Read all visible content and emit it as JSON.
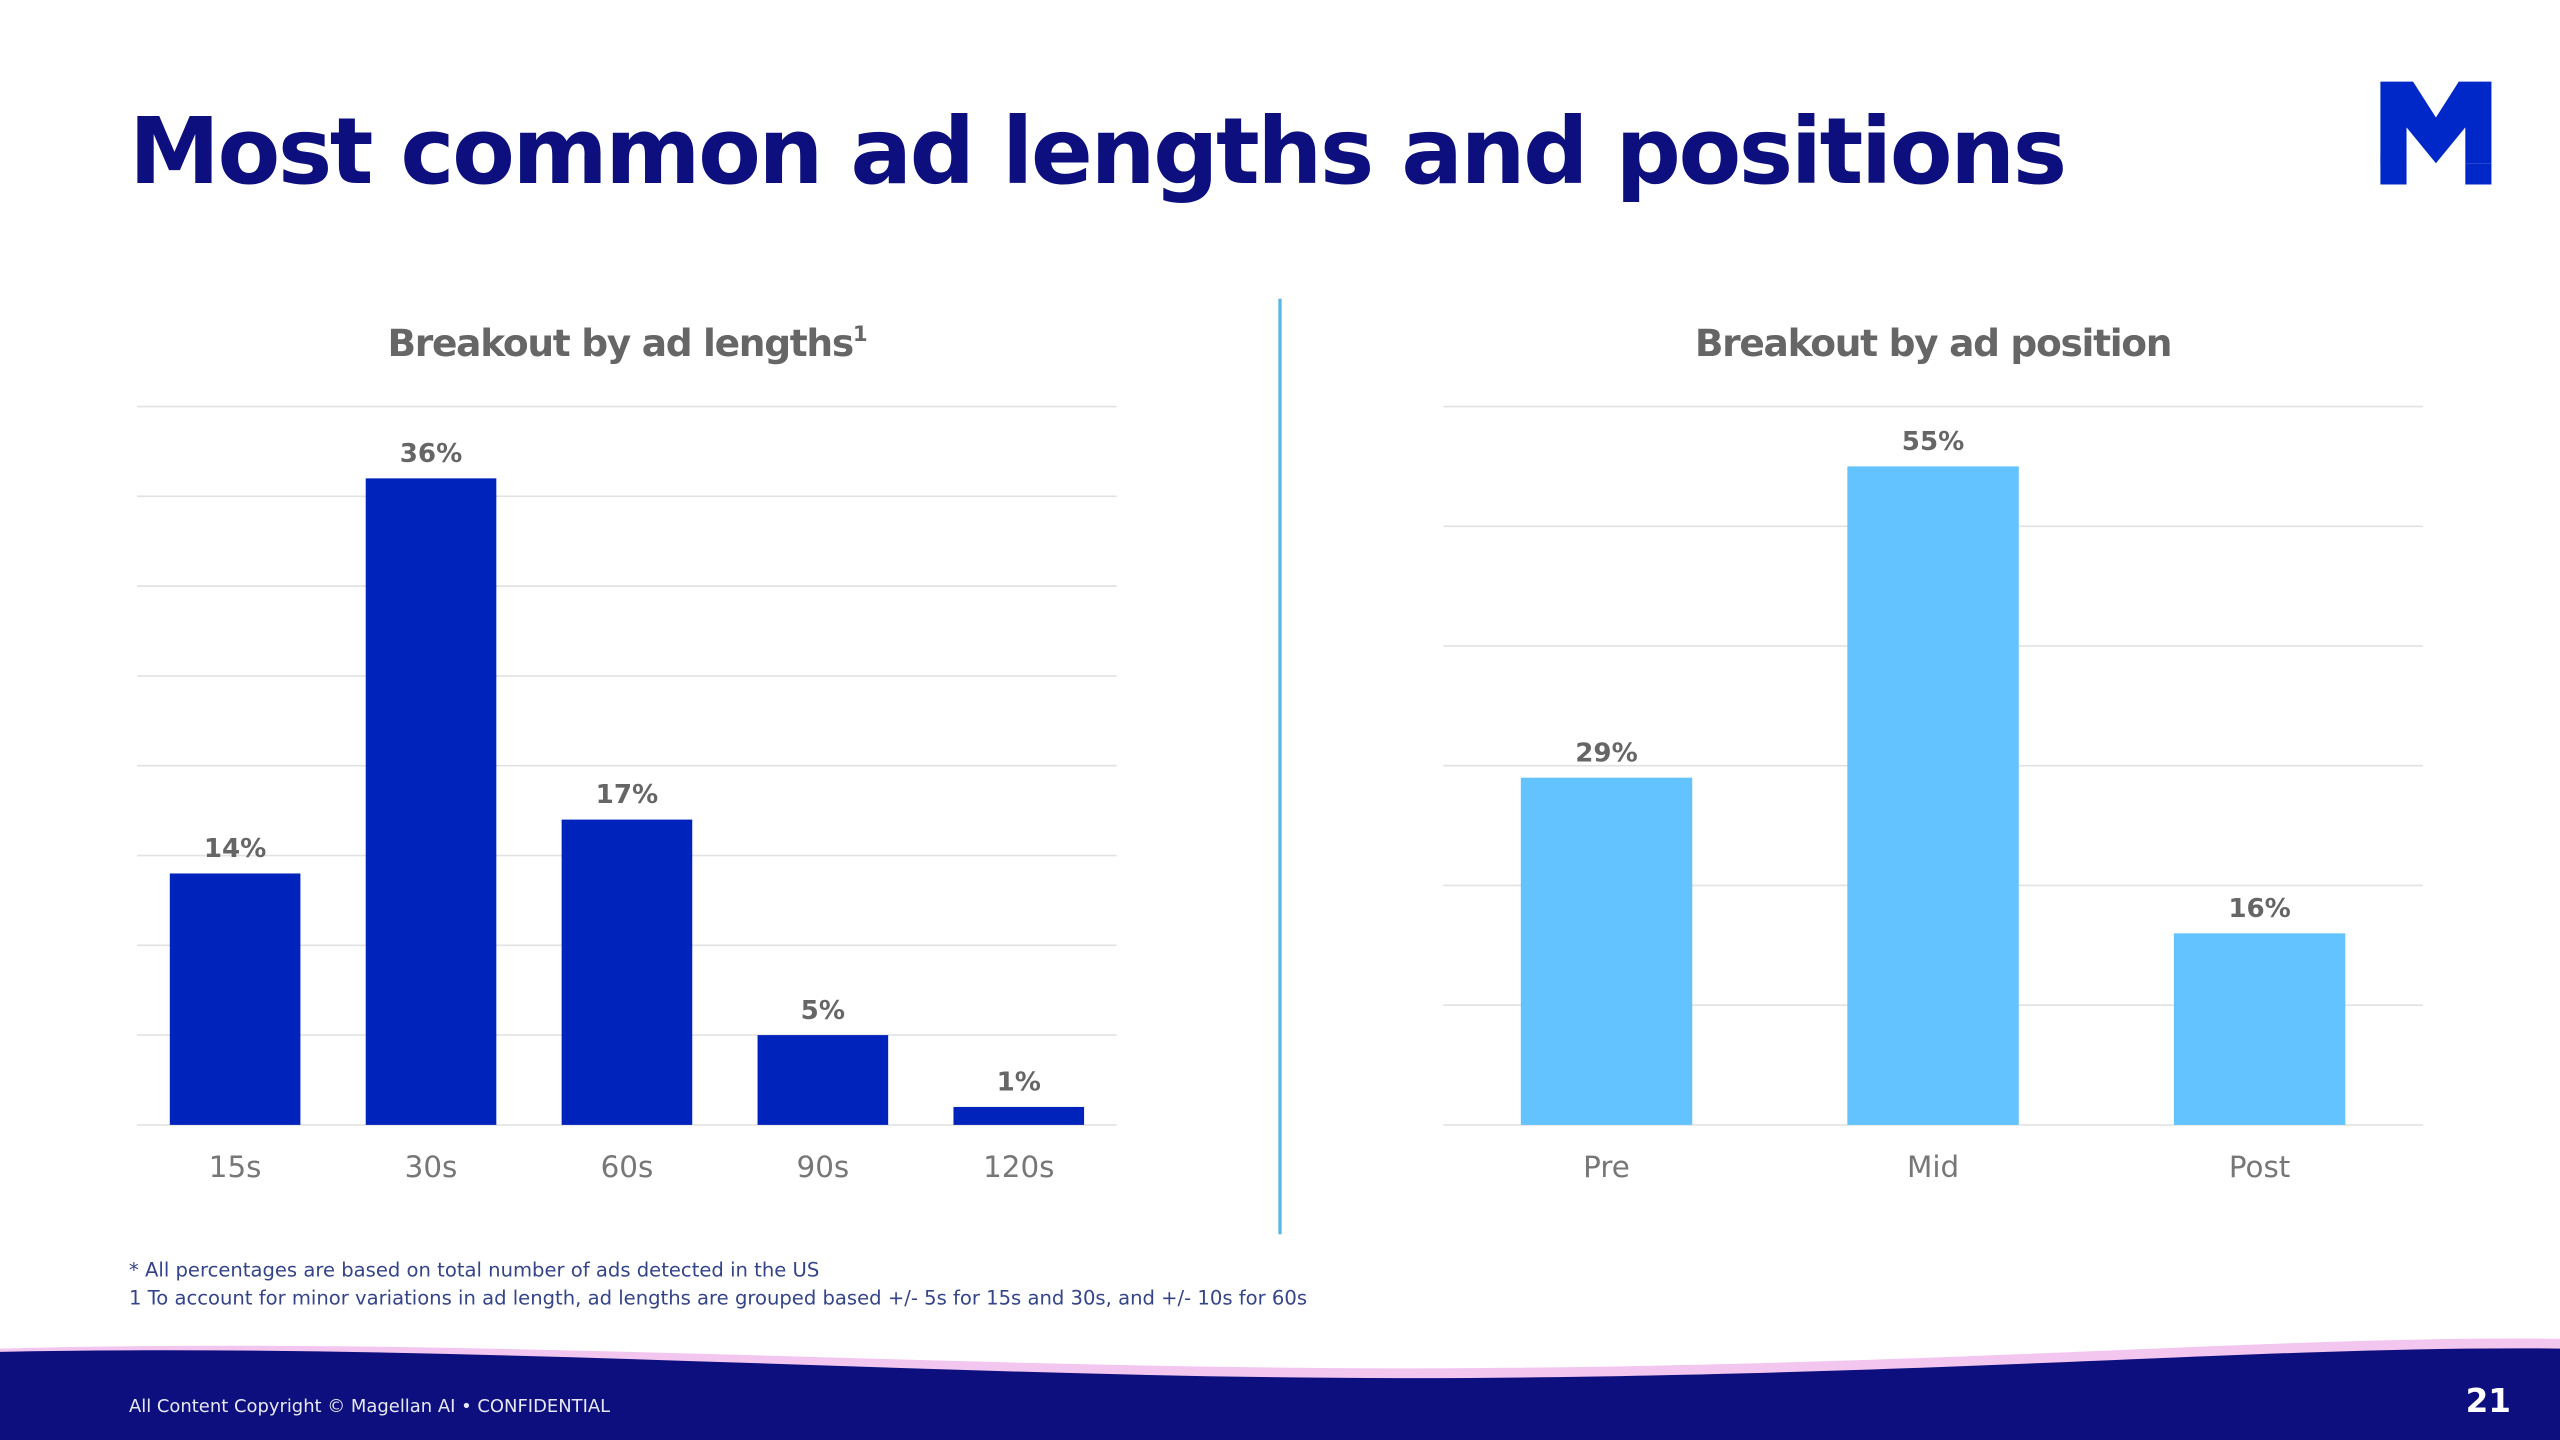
{
  "header": {
    "title": "Most common ad lengths and positions"
  },
  "chart_data": [
    {
      "type": "bar",
      "title": "Breakout by ad lengths",
      "title_superscript": "1",
      "categories": [
        "15s",
        "30s",
        "60s",
        "90s",
        "120s"
      ],
      "values": [
        14,
        36,
        17,
        5,
        1
      ],
      "value_labels": [
        "14%",
        "36%",
        "17%",
        "5%",
        "1%"
      ],
      "color": "#0023bb",
      "ylim": [
        0,
        40
      ],
      "yticks": [
        0,
        5,
        10,
        15,
        20,
        25,
        30,
        35,
        40
      ],
      "grid": true
    },
    {
      "type": "bar",
      "title": "Breakout by ad position",
      "categories": [
        "Pre",
        "Mid",
        "Post"
      ],
      "values": [
        29,
        55,
        16
      ],
      "value_labels": [
        "29%",
        "55%",
        "16%"
      ],
      "color": "#62c3fe",
      "ylim": [
        0,
        60
      ],
      "yticks": [
        0,
        10,
        20,
        30,
        40,
        50,
        60
      ],
      "grid": true
    }
  ],
  "footnotes": [
    "* All percentages are based on total number of ads detected in the US",
    "1 To account for minor variations in ad length, ad lengths are grouped based +/- 5s for 15s and 30s, and +/- 10s for 60s"
  ],
  "footer": {
    "copyright": "All Content Copyright © Magellan AI • CONFIDENTIAL",
    "page_number": "21"
  }
}
